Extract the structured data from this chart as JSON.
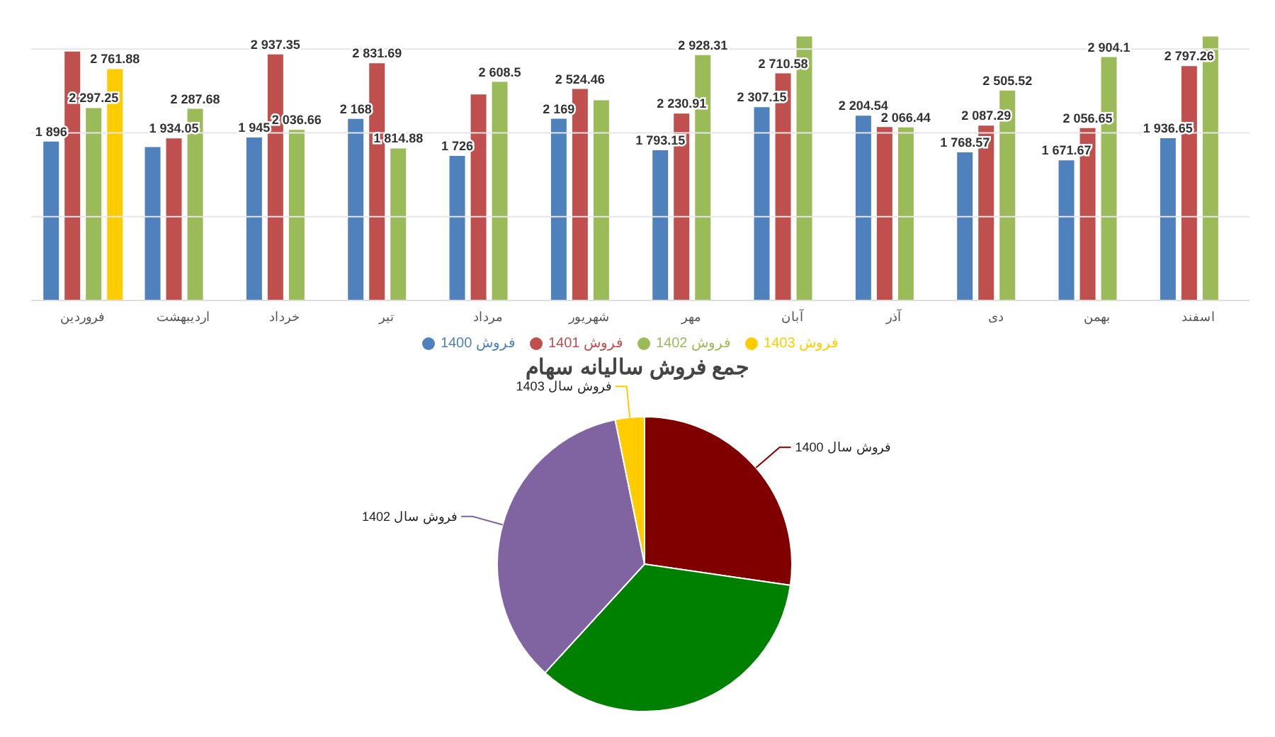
{
  "chart_data": [
    {
      "type": "bar",
      "categories": [
        "فروردین",
        "اردیبهشت",
        "خرداد",
        "تیر",
        "مرداد",
        "شهریور",
        "مهر",
        "آبان",
        "آذر",
        "دی",
        "بهمن",
        "اسفند"
      ],
      "series": [
        {
          "name": "فروش 1400",
          "color": "#4f81bd",
          "values": [
            1896,
            1830,
            1945,
            2168,
            1726,
            2169,
            1793.15,
            2307.15,
            2204.54,
            1768.57,
            1671.67,
            1936.65
          ],
          "value_labels": [
            "1 896",
            null,
            "1 945",
            "2 168",
            "1 726",
            "2 169",
            "1 793.15",
            "2 307.15",
            "2 204.54",
            "1 768.57",
            "1 671.67",
            "1 936.65"
          ]
        },
        {
          "name": "فروش 1401",
          "color": "#c0504d",
          "values": [
            2970,
            1934.05,
            2937.35,
            2831.69,
            2460,
            2524.46,
            2230.91,
            2710.58,
            2070,
            2087.29,
            2056.65,
            2797.26
          ],
          "value_labels": [
            null,
            "1 934.05",
            "2 937.35",
            "2 831.69",
            null,
            "2 524.46",
            "2 230.91",
            "2 710.58",
            null,
            "2 087.29",
            "2 056.65",
            "2 797.26"
          ]
        },
        {
          "name": "فروش 1402",
          "color": "#9bbb59",
          "values": [
            2297.25,
            2287.68,
            2036.66,
            1814.88,
            2608.5,
            2389,
            2928.31,
            3150,
            2066.44,
            2505.52,
            2904.1,
            3150
          ],
          "value_labels": [
            "2 297.25",
            "2 287.68",
            "2 036.66",
            "1 814.88",
            "2 608.5",
            null,
            "2 928.31",
            null,
            "2 066.44",
            "2 505.52",
            "2 904.1",
            null
          ]
        },
        {
          "name": "فروش 1403",
          "color": "#ffcc00",
          "values": [
            2761.88,
            null,
            null,
            null,
            null,
            null,
            null,
            null,
            null,
            null,
            null,
            null
          ],
          "value_labels": [
            "2 761.88",
            null,
            null,
            null,
            null,
            null,
            null,
            null,
            null,
            null,
            null,
            null
          ]
        }
      ],
      "ylim": [
        0,
        3180
      ],
      "yticks": [
        {
          "value": 0,
          "label": null
        },
        {
          "value": 1000,
          "label": null
        },
        {
          "value": 2000,
          "label": null
        },
        {
          "value": 3000,
          "label": null
        }
      ],
      "grid": "y",
      "tick_labels": "x",
      "legend": "bottom"
    },
    {
      "type": "pie",
      "title": "جمع فروش سالیانه سهام",
      "categories": [
        "فروش سال 1400",
        null,
        "فروش سال 1402",
        "فروش سال 1403"
      ],
      "values": [
        27.3,
        34.5,
        35,
        3.2
      ],
      "colors": [
        "#800000",
        "#008000",
        "#8064a2",
        "#ffcc00"
      ],
      "legend": false
    }
  ]
}
